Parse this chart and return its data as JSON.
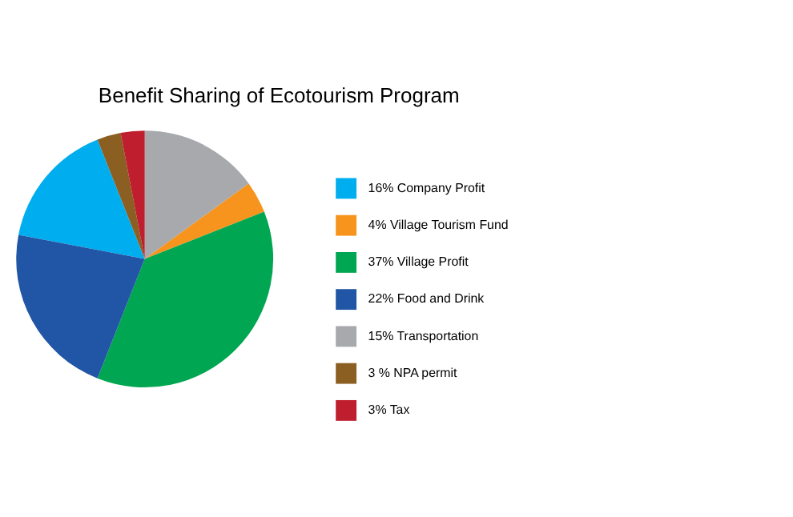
{
  "chart_data": {
    "type": "pie",
    "title": "Benefit Sharing of Ecotourism Program",
    "categories": [
      "16% Company Profit",
      "4% Village Tourism Fund",
      "37% Village Profit",
      "22% Food and Drink",
      "15% Transportation",
      "3 % NPA permit",
      "3% Tax"
    ],
    "values": [
      16,
      4,
      37,
      22,
      15,
      3,
      3
    ],
    "colors": [
      "#00aeef",
      "#f7941d",
      "#00a651",
      "#2155a5",
      "#a7a9ac",
      "#8b5e22",
      "#be1e2d"
    ],
    "legend": "right"
  }
}
